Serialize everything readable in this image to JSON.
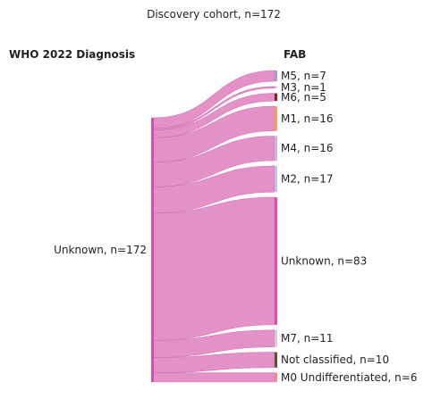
{
  "chart_data": {
    "type": "sankey",
    "title": "Discovery cohort, n=172",
    "left_header": "WHO 2022 Diagnosis",
    "right_header": "FAB",
    "source": {
      "label": "Unknown, n=172",
      "value": 172,
      "color": "#d94fae"
    },
    "link_color": "#e18cc4",
    "targets": [
      {
        "label": "M5, n=7",
        "value": 7,
        "color": "#9aa3d8"
      },
      {
        "label": "M3, n=1",
        "value": 1,
        "color": "#a8bcd8"
      },
      {
        "label": "M6, n=5",
        "value": 5,
        "color": "#8a1f1f"
      },
      {
        "label": "M1, n=16",
        "value": 16,
        "color": "#f2a55f"
      },
      {
        "label": "M4, n=16",
        "value": 16,
        "color": "#c8b8df"
      },
      {
        "label": "M2, n=17",
        "value": 17,
        "color": "#b8c6ea"
      },
      {
        "label": "Unknown, n=83",
        "value": 83,
        "color": "#d94fae"
      },
      {
        "label": "M7, n=11",
        "value": 11,
        "color": "#d0d0d0"
      },
      {
        "label": "Not classified, n=10",
        "value": 10,
        "color": "#4f5a2a"
      },
      {
        "label": "M0 Undifferentiated, n=6",
        "value": 6,
        "color": "#f08a8a"
      }
    ]
  }
}
